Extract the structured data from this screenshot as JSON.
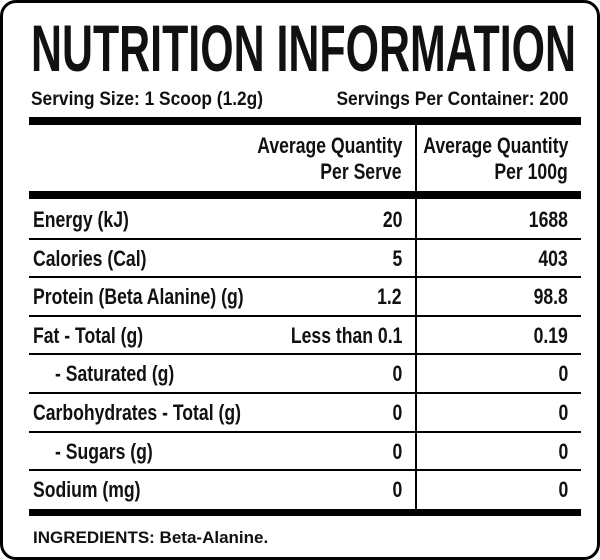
{
  "header": {
    "title": "NUTRITION INFORMATION",
    "serving_size": "Serving Size: 1 Scoop (1.2g)",
    "servings_per_container": "Servings Per Container: 200"
  },
  "table": {
    "columns": [
      [
        "Average Quantity",
        "Per Serve"
      ],
      [
        "Average Quantity",
        "Per 100g"
      ]
    ],
    "rows": [
      [
        "Energy (kJ)",
        "20",
        "1688"
      ],
      [
        "Calories (Cal)",
        "5",
        "403"
      ],
      [
        "Protein (Beta Alanine) (g)",
        "1.2",
        "98.8"
      ],
      [
        "Fat - Total (g)",
        "Less than 0.1",
        "0.19"
      ],
      [
        "- Saturated (g)",
        "0",
        "0"
      ],
      [
        "Carbohydrates - Total (g)",
        "0",
        "0"
      ],
      [
        "- Sugars (g)",
        "0",
        "0"
      ],
      [
        "Sodium (mg)",
        "0",
        "0"
      ]
    ]
  },
  "ingredients": "INGREDIENTS: Beta-Alanine."
}
